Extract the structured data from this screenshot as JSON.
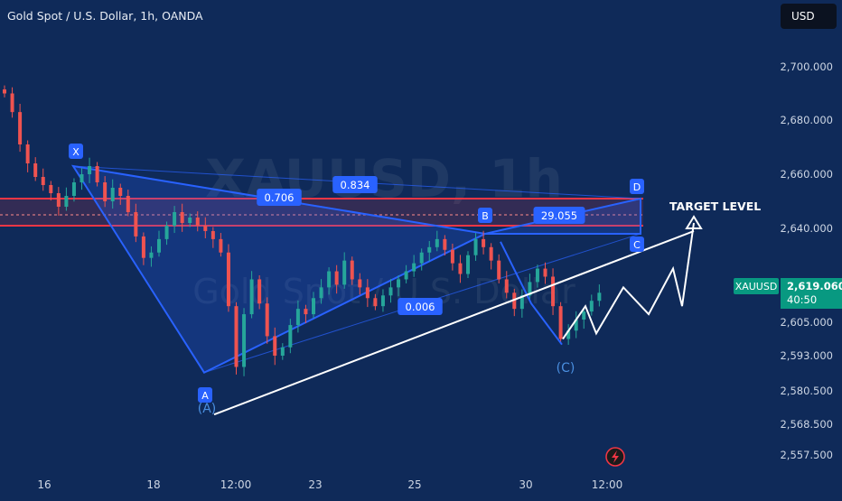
{
  "header": {
    "title": "Gold Spot / U.S. Dollar, 1h, OANDA"
  },
  "currency_button": "USD",
  "watermark": {
    "symbol": "XAUUSD, 1h",
    "name": "Gold Spot / U.S. Dollar"
  },
  "price_badge": {
    "symbol": "XAUUSD",
    "price": "2,619.060",
    "countdown": "40:50"
  },
  "pattern": {
    "points": [
      "X",
      "A",
      "B",
      "C",
      "D"
    ],
    "retracements": [
      "0.706",
      "0.834",
      "0.006",
      "29.055"
    ],
    "wave_label": "(C)",
    "wave_label_a": "(A)",
    "target_label": "TARGET LEVEL"
  },
  "colors": {
    "background": "#0f2a59",
    "bull": "#26a69a",
    "bear": "#ef5350",
    "pattern_fill": "#2962ff",
    "zone": "#f23645",
    "label_bg": "#2962ff",
    "price_badge": "#089981"
  },
  "chart_data": {
    "type": "candlestick",
    "title": "Gold Spot / U.S. Dollar, 1h, OANDA",
    "ylim": [
      2550,
      2720
    ],
    "y_ticks": [
      "2,700.000",
      "2,680.000",
      "2,660.000",
      "2,640.000",
      "2,605.000",
      "2,593.000",
      "2,580.500",
      "2,568.500",
      "2,557.500"
    ],
    "x_ticks": [
      "16",
      "18",
      "12:00",
      "23",
      "25",
      "30",
      "12:00"
    ],
    "last_price": 2619.06,
    "resistance_zone": [
      2641,
      2651
    ],
    "closes": [
      2690,
      2683,
      2671,
      2664,
      2659,
      2656,
      2653,
      2648,
      2652,
      2657,
      2660,
      2663,
      2657,
      2650,
      2655,
      2652,
      2646,
      2637,
      2629,
      2631,
      2636,
      2641,
      2646,
      2642,
      2644,
      2641,
      2639,
      2636,
      2631,
      2611,
      2589,
      2608,
      2621,
      2612,
      2600,
      2593,
      2596,
      2604,
      2610,
      2608,
      2614,
      2618,
      2624,
      2619,
      2628,
      2621,
      2618,
      2614,
      2611,
      2615,
      2618,
      2621,
      2624,
      2627,
      2631,
      2633,
      2636,
      2632,
      2627,
      2623,
      2630,
      2636,
      2633,
      2628,
      2621,
      2616,
      2610,
      2615,
      2620,
      2625,
      2622,
      2611,
      2599,
      2602,
      2606,
      2609,
      2613,
      2616
    ],
    "pattern_prices": {
      "X": 2663,
      "A": 2587,
      "B": 2638,
      "C": 2638,
      "D": 2651
    },
    "projection_prices": [
      2599,
      2611,
      2601,
      2618,
      2608,
      2625,
      2611,
      2642,
      2636
    ],
    "trendline": [
      2572,
      2639
    ]
  }
}
